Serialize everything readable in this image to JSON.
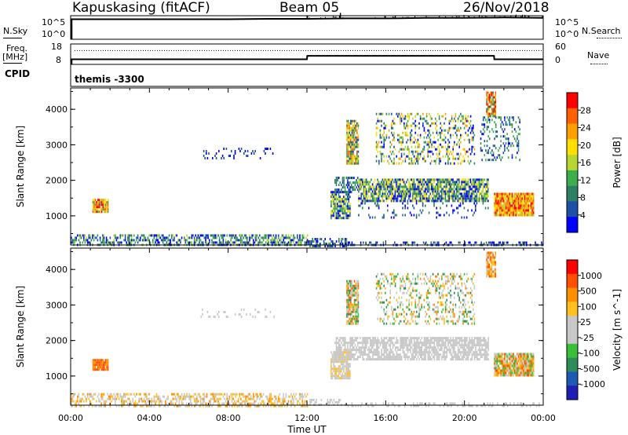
{
  "header": {
    "station": "Kapuskasing (fitACF)",
    "beam": "Beam 05",
    "date": "26/Nov/2018"
  },
  "strip_labels": {
    "nsky": "N.Sky",
    "nsearch": "N.Search",
    "freq": "Freq.",
    "mhz": "[MHz]",
    "nave": "Nave",
    "cpid": "CPID",
    "cpid_value": "themis -3300",
    "noise_left_ticks": [
      "10^5",
      "10^0"
    ],
    "noise_right_ticks": [
      "10^5",
      "10^0"
    ],
    "freq_left_ticks": [
      "18",
      "8"
    ],
    "nave_right_ticks": [
      "60",
      "0"
    ]
  },
  "colors": {
    "power_scale": [
      "#0000ff",
      "#1e50a8",
      "#2e7f64",
      "#3cae4c",
      "#b8d630",
      "#ffe000",
      "#ffa000",
      "#ff6000",
      "#ff0000"
    ],
    "velocity_scale": [
      "#1e1eb4",
      "#1e5ab4",
      "#2e8c5a",
      "#38c038",
      "#c8c8c8",
      "#c8c8c8",
      "#ffc020",
      "#ff9000",
      "#ff5000",
      "#ff0000"
    ]
  },
  "chart_data": [
    {
      "type": "line",
      "name": "noise-panel",
      "series": [
        {
          "name": "N.Sky",
          "x": [
            "00:00",
            "02:00",
            "04:00",
            "06:00",
            "08:00",
            "10:00",
            "12:00",
            "14:00",
            "16:00",
            "18:00",
            "20:00",
            "22:00",
            "24:00"
          ],
          "values": [
            4.5,
            4.5,
            4.5,
            4.5,
            4.5,
            4.6,
            4.6,
            4.7,
            4.7,
            4.8,
            4.8,
            4.9,
            4.8
          ]
        }
      ],
      "yticks_left": [
        "10^5",
        "10^0"
      ],
      "yticks_right": [
        "10^5",
        "10^0"
      ]
    },
    {
      "type": "line",
      "name": "freq-nave-panel",
      "series": [
        {
          "name": "Freq.",
          "x": [
            "00:00",
            "00:15",
            "12:00",
            "12:01",
            "21:30",
            "21:31",
            "24:00"
          ],
          "values": [
            10.5,
            10.5,
            10.5,
            12.2,
            12.2,
            10.5,
            10.5
          ]
        }
      ],
      "ylabel": "[MHz]",
      "ylim": [
        8,
        18
      ]
    },
    {
      "type": "heatmap",
      "name": "power-panel",
      "ylabel": "Slant Range [km]",
      "ylim": [
        180,
        4600
      ],
      "yticks": [
        1000,
        2000,
        3000,
        4000
      ],
      "xticks": [
        "00:00",
        "04:00",
        "08:00",
        "12:00",
        "16:00",
        "20:00",
        "00:00"
      ],
      "xlim_hours": [
        0,
        24
      ],
      "colorbar_label": "Power [dB]",
      "colorbar_ticks": [
        "28",
        "24",
        "20",
        "16",
        "12",
        "8",
        "4"
      ],
      "regions": [
        {
          "t": [
            1.1,
            1.9
          ],
          "r": [
            1130,
            1480
          ],
          "density": 0.9,
          "cmin": 3,
          "cmax": 8
        },
        {
          "t": [
            0.0,
            12.0
          ],
          "r": [
            180,
            480
          ],
          "density": 0.55,
          "cmin": 0,
          "cmax": 4
        },
        {
          "t": [
            12.0,
            14.0
          ],
          "r": [
            180,
            380
          ],
          "density": 0.55,
          "cmin": 0,
          "cmax": 3
        },
        {
          "t": [
            14.0,
            24.0
          ],
          "r": [
            180,
            280
          ],
          "density": 0.35,
          "cmin": 0,
          "cmax": 2
        },
        {
          "t": [
            6.6,
            10.3
          ],
          "r": [
            2650,
            2920
          ],
          "density": 0.18,
          "cmin": 0,
          "cmax": 1
        },
        {
          "t": [
            13.2,
            14.2
          ],
          "r": [
            950,
            1700
          ],
          "density": 0.8,
          "cmin": 0,
          "cmax": 5
        },
        {
          "t": [
            14.0,
            14.6
          ],
          "r": [
            2500,
            3700
          ],
          "density": 0.85,
          "cmin": 1,
          "cmax": 7
        },
        {
          "t": [
            13.4,
            14.6
          ],
          "r": [
            1700,
            2100
          ],
          "density": 0.55,
          "cmin": 0,
          "cmax": 3
        },
        {
          "t": [
            14.6,
            21.2
          ],
          "r": [
            1450,
            2050
          ],
          "density": 0.8,
          "cmin": 0,
          "cmax": 5
        },
        {
          "t": [
            14.6,
            21.2
          ],
          "r": [
            950,
            1450
          ],
          "density": 0.15,
          "cmin": 0,
          "cmax": 2
        },
        {
          "t": [
            15.5,
            20.5
          ],
          "r": [
            2500,
            3900
          ],
          "density": 0.3,
          "cmin": 0,
          "cmax": 6
        },
        {
          "t": [
            21.1,
            21.6
          ],
          "r": [
            3800,
            4500
          ],
          "density": 0.85,
          "cmin": 2,
          "cmax": 8
        },
        {
          "t": [
            20.8,
            22.8
          ],
          "r": [
            2600,
            3800
          ],
          "density": 0.25,
          "cmin": 0,
          "cmax": 3
        },
        {
          "t": [
            21.5,
            23.5
          ],
          "r": [
            1000,
            1650
          ],
          "density": 0.95,
          "cmin": 4,
          "cmax": 8
        }
      ]
    },
    {
      "type": "heatmap",
      "name": "velocity-panel",
      "ylabel": "Slant Range [km]",
      "ylim": [
        180,
        4600
      ],
      "yticks": [
        1000,
        2000,
        3000,
        4000
      ],
      "xticks": [
        "00:00",
        "04:00",
        "08:00",
        "12:00",
        "16:00",
        "20:00",
        "00:00"
      ],
      "xlim_hours": [
        0,
        24
      ],
      "xlabel": "Time UT",
      "colorbar_label": "Velocity [m s^-1]",
      "colorbar_ticks": [
        "1000",
        "500",
        "100",
        "25",
        "-25",
        "-100",
        "-500",
        "-1000"
      ],
      "regions": [
        {
          "t": [
            1.1,
            1.9
          ],
          "r": [
            1150,
            1480
          ],
          "density": 0.9,
          "cmin": 7,
          "cmax": 8
        },
        {
          "t": [
            0.0,
            12.0
          ],
          "r": [
            180,
            520
          ],
          "density": 0.5,
          "cmin": 4,
          "cmax": 7
        },
        {
          "t": [
            12.0,
            14.0
          ],
          "r": [
            180,
            360
          ],
          "density": 0.45,
          "cmin": 4,
          "cmax": 5
        },
        {
          "t": [
            14.0,
            24.0
          ],
          "r": [
            180,
            260
          ],
          "density": 0.3,
          "cmin": 4,
          "cmax": 5
        },
        {
          "t": [
            6.6,
            10.3
          ],
          "r": [
            2650,
            2900
          ],
          "density": 0.15,
          "cmin": 4,
          "cmax": 5
        },
        {
          "t": [
            13.2,
            14.2
          ],
          "r": [
            950,
            1700
          ],
          "density": 0.8,
          "cmin": 4,
          "cmax": 6
        },
        {
          "t": [
            14.0,
            14.6
          ],
          "r": [
            2500,
            3700
          ],
          "density": 0.85,
          "cmin": 2,
          "cmax": 8
        },
        {
          "t": [
            13.4,
            21.2
          ],
          "r": [
            1500,
            2100
          ],
          "density": 0.75,
          "cmin": 4,
          "cmax": 5
        },
        {
          "t": [
            15.5,
            20.5
          ],
          "r": [
            2500,
            3900
          ],
          "density": 0.3,
          "cmin": 2,
          "cmax": 7
        },
        {
          "t": [
            21.1,
            21.6
          ],
          "r": [
            3800,
            4500
          ],
          "density": 0.85,
          "cmin": 5,
          "cmax": 8
        },
        {
          "t": [
            21.5,
            23.5
          ],
          "r": [
            1000,
            1650
          ],
          "density": 0.95,
          "cmin": 3,
          "cmax": 8
        }
      ]
    }
  ]
}
